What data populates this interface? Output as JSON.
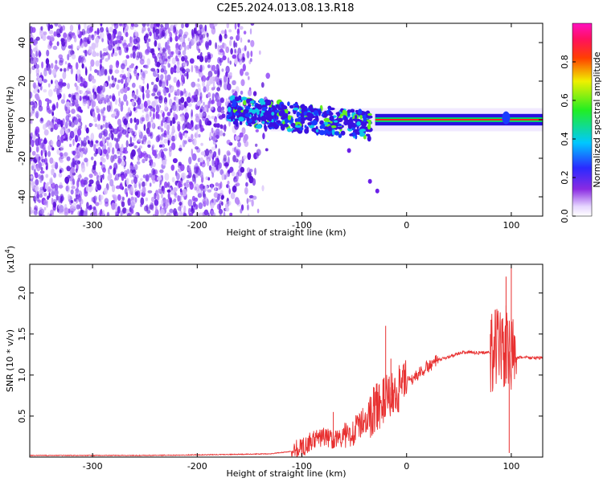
{
  "title": "C2E5.2024.013.08.13.R18",
  "chart_data": [
    {
      "type": "heatmap",
      "xlabel": "Height of straight line (km)",
      "ylabel": "Frequency (Hz)",
      "xlim": [
        -360,
        130
      ],
      "ylim": [
        -50,
        50
      ],
      "xticks": [
        -300,
        -200,
        -100,
        0,
        100
      ],
      "yticks": [
        -40,
        -20,
        0,
        20,
        40
      ],
      "colorbar": {
        "label": "Normalized spectral amplitude",
        "range": [
          0.0,
          1.0
        ],
        "ticks": [
          0.0,
          0.2,
          0.4,
          0.6,
          0.8
        ],
        "colormap": "rainbow (white → violet → blue → cyan → green → yellow → red → magenta)"
      },
      "features": {
        "noise_region_x": [
          -360,
          -130
        ],
        "noise_color": "#7a3cf0",
        "tone_line": {
          "frequency_hz": 0,
          "x_range": [
            -30,
            130
          ],
          "colors": [
            "#ff2020",
            "#00dd60",
            "#1a1aff"
          ]
        },
        "scatter_band": {
          "x_range": [
            -170,
            -35
          ],
          "frequency_range_hz": [
            -15,
            8
          ]
        }
      }
    },
    {
      "type": "line",
      "xlabel": "Height of straight line (km)",
      "ylabel": "SNR (10 * v/v)",
      "multiplier": "(x10",
      "multiplier_exp": "4",
      "multiplier_close": ")",
      "xlim": [
        -360,
        130
      ],
      "ylim": [
        0,
        2.35
      ],
      "xticks": [
        -300,
        -200,
        -100,
        0,
        100
      ],
      "yticks": [
        0.5,
        1.0,
        1.5,
        2.0
      ],
      "ytick_labels": [
        "0.5",
        "1.0",
        "1.5",
        "2.0"
      ],
      "color": "#e83030",
      "series": [
        {
          "x": [
            -360,
            -250,
            -180,
            -130,
            -110,
            -100,
            -90,
            -80,
            -70,
            -60,
            -50,
            -40,
            -30,
            -20,
            -10,
            0,
            10,
            20,
            30,
            40,
            50,
            60,
            70,
            80,
            85,
            90,
            95,
            100,
            105,
            110,
            120,
            130
          ],
          "y": [
            0.02,
            0.02,
            0.03,
            0.04,
            0.07,
            0.12,
            0.2,
            0.25,
            0.22,
            0.24,
            0.32,
            0.45,
            0.6,
            0.7,
            0.8,
            0.9,
            1.0,
            1.1,
            1.18,
            1.22,
            1.27,
            1.28,
            1.27,
            1.28,
            1.3,
            1.35,
            1.3,
            1.28,
            1.2,
            1.22,
            1.21,
            1.21
          ]
        }
      ],
      "spikes": [
        {
          "x": -70,
          "y": 0.55
        },
        {
          "x": -20,
          "y": 1.6
        },
        {
          "x": -15,
          "y": 1.2
        },
        {
          "x": 80,
          "y": 1.5
        },
        {
          "x": 95,
          "y": 2.2
        },
        {
          "x": 100,
          "y": 2.33
        },
        {
          "x": 98,
          "y": 0.05
        }
      ]
    }
  ]
}
